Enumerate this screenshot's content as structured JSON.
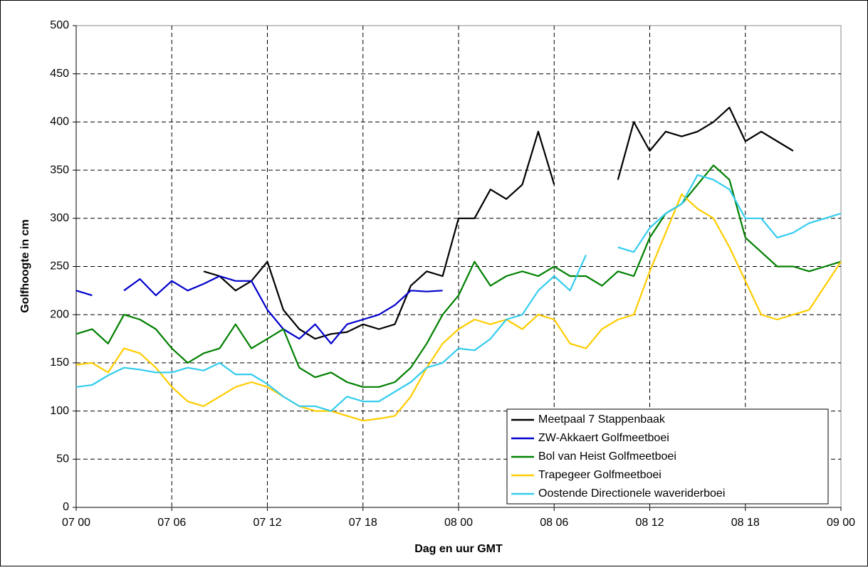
{
  "chart_data": {
    "type": "line",
    "x_label": "Dag en uur GMT",
    "y_label": "Golfhoogte in cm",
    "x": [
      0,
      1,
      2,
      3,
      4,
      5,
      6,
      7,
      8,
      9,
      10,
      11,
      12,
      13,
      14,
      15,
      16,
      17,
      18,
      19,
      20,
      21,
      22,
      23,
      24,
      25,
      26,
      27,
      28,
      29,
      30,
      31,
      32,
      33,
      34,
      35,
      36,
      37,
      38,
      39,
      40,
      41,
      42,
      43,
      44,
      45,
      46,
      47,
      48
    ],
    "xlim": [
      0,
      48
    ],
    "xticks": [
      {
        "value": 0,
        "label": "07 00"
      },
      {
        "value": 6,
        "label": "07 06"
      },
      {
        "value": 12,
        "label": "07 12"
      },
      {
        "value": 18,
        "label": "07 18"
      },
      {
        "value": 24,
        "label": "08 00"
      },
      {
        "value": 30,
        "label": "08 06"
      },
      {
        "value": 36,
        "label": "08 12"
      },
      {
        "value": 42,
        "label": "08 18"
      },
      {
        "value": 48,
        "label": "09 00"
      }
    ],
    "ylim": [
      0,
      500
    ],
    "yticks": [
      0,
      50,
      100,
      150,
      200,
      250,
      300,
      350,
      400,
      450,
      500
    ],
    "grid": true,
    "legend": "lower right",
    "series": [
      {
        "name": "Meetpaal 7 Stappenbaak",
        "color": "#000000",
        "values": [
          null,
          null,
          null,
          null,
          null,
          null,
          null,
          null,
          245,
          240,
          225,
          235,
          255,
          205,
          185,
          175,
          180,
          182,
          190,
          185,
          190,
          230,
          245,
          240,
          300,
          300,
          330,
          320,
          335,
          390,
          335,
          null,
          null,
          null,
          340,
          400,
          370,
          390,
          385,
          390,
          400,
          415,
          380,
          390,
          380,
          370,
          null,
          null,
          null
        ]
      },
      {
        "name": "ZW-Akkaert Golfmeetboei",
        "color": "#0000cc",
        "values": [
          225,
          220,
          null,
          225,
          237,
          220,
          235,
          225,
          232,
          240,
          235,
          235,
          205,
          185,
          175,
          190,
          170,
          190,
          195,
          200,
          210,
          225,
          224,
          225,
          null,
          null,
          null,
          null,
          null,
          null,
          null,
          null,
          null,
          null,
          null,
          null,
          null,
          null,
          null,
          null,
          null,
          null,
          null,
          null,
          null,
          null,
          null,
          null,
          null
        ]
      },
      {
        "name": "Bol van Heist Golfmeetboei",
        "color": "#008000",
        "values": [
          180,
          185,
          170,
          200,
          195,
          185,
          165,
          150,
          160,
          165,
          190,
          165,
          175,
          185,
          145,
          135,
          140,
          130,
          125,
          125,
          130,
          145,
          170,
          200,
          220,
          255,
          230,
          240,
          245,
          240,
          250,
          240,
          240,
          230,
          245,
          240,
          280,
          305,
          315,
          335,
          355,
          340,
          280,
          265,
          250,
          250,
          245,
          250,
          255
        ]
      },
      {
        "name": "Trapegeer Golfmeetboei",
        "color": "#ffcc00",
        "values": [
          148,
          150,
          140,
          165,
          160,
          145,
          125,
          110,
          105,
          115,
          125,
          130,
          125,
          115,
          105,
          100,
          100,
          95,
          90,
          92,
          95,
          115,
          145,
          170,
          185,
          195,
          190,
          195,
          185,
          200,
          195,
          170,
          165,
          185,
          195,
          200,
          245,
          285,
          325,
          310,
          300,
          270,
          235,
          200,
          195,
          200,
          205,
          230,
          255
        ]
      },
      {
        "name": "Oostende Directionele waveriderboei",
        "color": "#33ccee",
        "values": [
          125,
          127,
          137,
          145,
          143,
          140,
          140,
          145,
          142,
          150,
          138,
          138,
          128,
          115,
          105,
          105,
          100,
          115,
          110,
          110,
          120,
          130,
          145,
          150,
          165,
          163,
          175,
          195,
          200,
          225,
          240,
          225,
          262,
          null,
          270,
          265,
          290,
          305,
          315,
          345,
          340,
          330,
          300,
          300,
          280,
          285,
          295,
          300,
          305
        ]
      }
    ]
  }
}
